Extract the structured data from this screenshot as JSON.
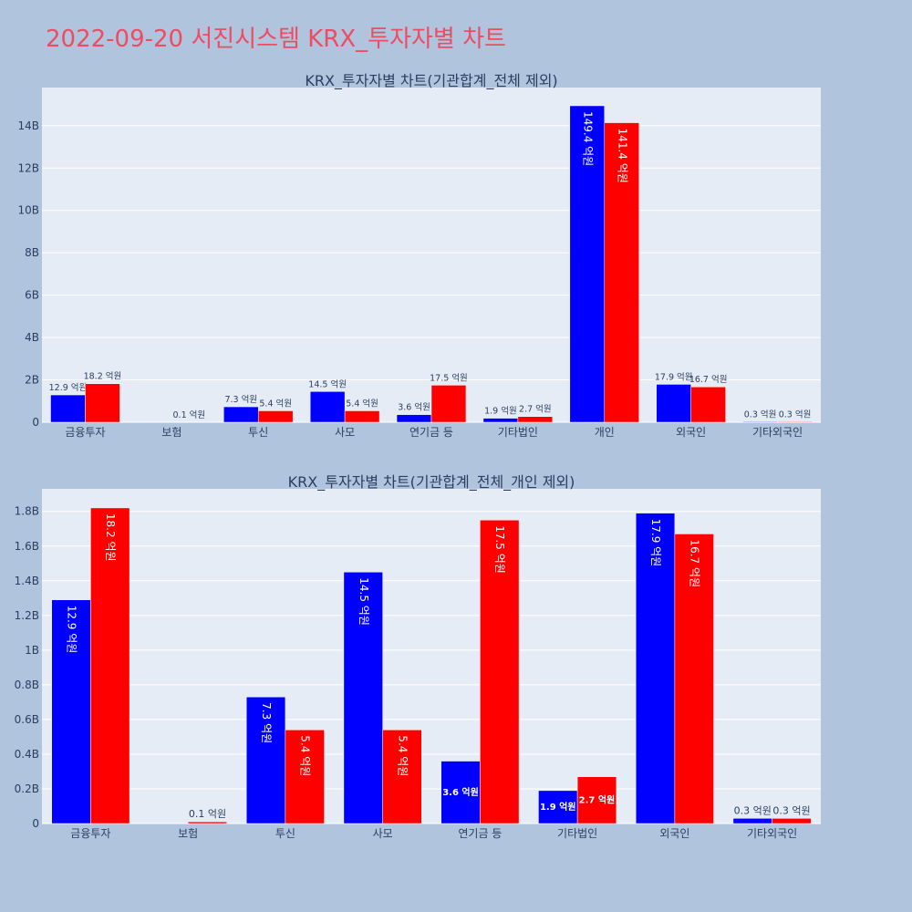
{
  "page": {
    "title": "2022-09-20 서진시스템 KRX_투자자별 차트",
    "background": "#b0c4de"
  },
  "colors": {
    "series_a": "#0000ff",
    "series_b": "#ff0000",
    "plot_bg": "#e5ecf6",
    "grid": "#ffffff",
    "title_color": "#ef4b63"
  },
  "chart_data": [
    {
      "type": "bar",
      "title": "KRX_투자자별 차트(기관합계_전체 제외)",
      "categories": [
        "금융투자",
        "보험",
        "투신",
        "사모",
        "연기금 등",
        "기타법인",
        "개인",
        "외국인",
        "기타외국인"
      ],
      "series": [
        {
          "values": [
            1.29,
            0,
            0.73,
            1.45,
            0.36,
            0.19,
            14.94,
            1.79,
            0.03
          ]
        },
        {
          "values": [
            1.82,
            0.01,
            0.54,
            0.54,
            1.75,
            0.27,
            14.14,
            1.67,
            0.03
          ]
        }
      ],
      "labels": [
        [
          "12.9 억원",
          "",
          "7.3 억원",
          "14.5 억원",
          "3.6 억원",
          "1.9 억원",
          "149.4 억원",
          "17.9 억원",
          "0.3 억원"
        ],
        [
          "18.2 억원",
          "0.1 억원",
          "5.4 억원",
          "5.4 억원",
          "17.5 억원",
          "2.7 억원",
          "141.4 억원",
          "16.7 억원",
          "0.3 억원"
        ]
      ],
      "yticks": [
        0,
        2,
        4,
        6,
        8,
        10,
        12,
        14
      ],
      "ytick_labels": [
        "0",
        "2B",
        "4B",
        "6B",
        "8B",
        "10B",
        "12B",
        "14B"
      ],
      "ylim": [
        0,
        15.8
      ],
      "grid": true
    },
    {
      "type": "bar",
      "title": "KRX_투자자별 차트(기관합계_전체_개인 제외)",
      "categories": [
        "금융투자",
        "보험",
        "투신",
        "사모",
        "연기금 등",
        "기타법인",
        "외국인",
        "기타외국인"
      ],
      "series": [
        {
          "values": [
            1.29,
            0,
            0.73,
            1.45,
            0.36,
            0.19,
            1.79,
            0.03
          ]
        },
        {
          "values": [
            1.82,
            0.01,
            0.54,
            0.54,
            1.75,
            0.27,
            1.67,
            0.03
          ]
        }
      ],
      "labels": [
        [
          "12.9 억원",
          "",
          "7.3 억원",
          "14.5 억원",
          "3.6 억원",
          "1.9 억원",
          "17.9 억원",
          "0.3 억원"
        ],
        [
          "18.2 억원",
          "0.1 억원",
          "5.4 억원",
          "5.4 억원",
          "17.5 억원",
          "2.7 억원",
          "16.7 억원",
          "0.3 억원"
        ]
      ],
      "yticks": [
        0,
        0.2,
        0.4,
        0.6,
        0.8,
        1.0,
        1.2,
        1.4,
        1.6,
        1.8
      ],
      "ytick_labels": [
        "0",
        "0.2B",
        "0.4B",
        "0.6B",
        "0.8B",
        "1B",
        "1.2B",
        "1.4B",
        "1.6B",
        "1.8B"
      ],
      "ylim": [
        0,
        1.93
      ],
      "grid": true
    }
  ]
}
